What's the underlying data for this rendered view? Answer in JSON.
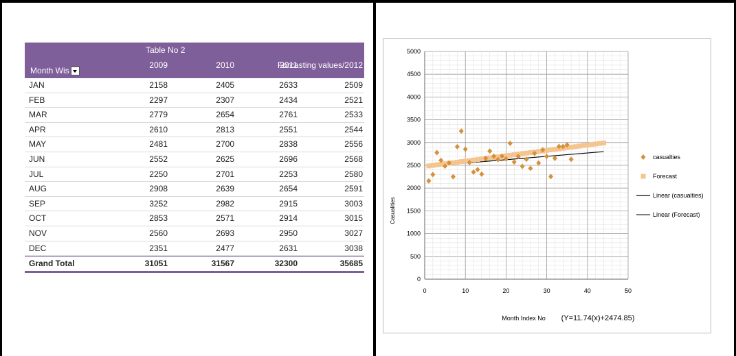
{
  "table": {
    "title": "Table No 2",
    "month_header": "Month Wis",
    "year_headers": [
      "2009",
      "2010",
      "2011",
      "Forcasting values/2012"
    ],
    "rows": [
      {
        "month": "JAN",
        "v": [
          "2158",
          "2405",
          "2633",
          "2509"
        ]
      },
      {
        "month": "FEB",
        "v": [
          "2297",
          "2307",
          "2434",
          "2521"
        ]
      },
      {
        "month": "MAR",
        "v": [
          "2779",
          "2654",
          "2761",
          "2533"
        ]
      },
      {
        "month": "APR",
        "v": [
          "2610",
          "2813",
          "2551",
          "2544"
        ]
      },
      {
        "month": "MAY",
        "v": [
          "2481",
          "2700",
          "2838",
          "2556"
        ]
      },
      {
        "month": "JUN",
        "v": [
          "2552",
          "2625",
          "2696",
          "2568"
        ]
      },
      {
        "month": "JUL",
        "v": [
          "2250",
          "2701",
          "2253",
          "2580"
        ]
      },
      {
        "month": "AUG",
        "v": [
          "2908",
          "2639",
          "2654",
          "2591"
        ]
      },
      {
        "month": "SEP",
        "v": [
          "3252",
          "2982",
          "2915",
          "3003"
        ]
      },
      {
        "month": "OCT",
        "v": [
          "2853",
          "2571",
          "2914",
          "3015"
        ]
      },
      {
        "month": "NOV",
        "v": [
          "2560",
          "2693",
          "2950",
          "3027"
        ]
      },
      {
        "month": "DEC",
        "v": [
          "2351",
          "2477",
          "2631",
          "3038"
        ]
      }
    ],
    "total": {
      "label": "Grand Total",
      "v": [
        "31051",
        "31567",
        "32300",
        "35685"
      ]
    }
  },
  "chart_data": {
    "type": "scatter",
    "xlabel": "Month Index No",
    "ylabel": "Casualities",
    "equation": "(Y=11.74(x)+2474.85)",
    "xlim": [
      0,
      50
    ],
    "ylim": [
      0,
      5000
    ],
    "xticks": [
      0,
      10,
      20,
      30,
      40,
      50
    ],
    "yticks": [
      0,
      500,
      1000,
      1500,
      2000,
      2500,
      3000,
      3500,
      4000,
      4500,
      5000
    ],
    "grid": true,
    "legend_position": "right",
    "series": [
      {
        "name": "casualties",
        "marker": "diamond",
        "color": "#d4913a",
        "x": [
          1,
          2,
          3,
          4,
          5,
          6,
          7,
          8,
          9,
          10,
          11,
          12,
          13,
          14,
          15,
          16,
          17,
          18,
          19,
          20,
          21,
          22,
          23,
          24,
          25,
          26,
          27,
          28,
          29,
          30,
          31,
          32,
          33,
          34,
          35,
          36
        ],
        "y": [
          2158,
          2297,
          2779,
          2610,
          2481,
          2552,
          2250,
          2908,
          3252,
          2853,
          2560,
          2351,
          2405,
          2307,
          2654,
          2813,
          2700,
          2625,
          2701,
          2639,
          2982,
          2571,
          2693,
          2477,
          2633,
          2434,
          2761,
          2551,
          2838,
          2696,
          2253,
          2654,
          2915,
          2914,
          2950,
          2631
        ]
      },
      {
        "name": "Forecast",
        "marker": "square",
        "color": "#f5c48f",
        "x": [
          1,
          2,
          3,
          4,
          5,
          6,
          7,
          8,
          9,
          10,
          11,
          12,
          13,
          14,
          15,
          16,
          17,
          18,
          19,
          20,
          21,
          22,
          23,
          24,
          25,
          26,
          27,
          28,
          29,
          30,
          31,
          32,
          33,
          34,
          35,
          36,
          37,
          38,
          39,
          40,
          41,
          42,
          43,
          44
        ],
        "y": [
          2487,
          2498,
          2510,
          2522,
          2534,
          2545,
          2557,
          2569,
          2581,
          2592,
          2604,
          2616,
          2627,
          2639,
          2651,
          2663,
          2674,
          2686,
          2698,
          2710,
          2721,
          2733,
          2745,
          2757,
          2768,
          2780,
          2792,
          2804,
          2815,
          2827,
          2839,
          2850,
          2862,
          2874,
          2886,
          2897,
          2909,
          2921,
          2933,
          2944,
          2956,
          2968,
          2980,
          2991
        ]
      },
      {
        "name": "Linear (casualties)",
        "type": "line",
        "color": "#000000",
        "x": [
          1,
          44
        ],
        "y": [
          2484,
          2800
        ]
      },
      {
        "name": "Linear (Forecast)",
        "type": "line",
        "color": "#333333",
        "x": [
          1,
          44
        ],
        "y": [
          2487,
          2991
        ]
      }
    ]
  }
}
